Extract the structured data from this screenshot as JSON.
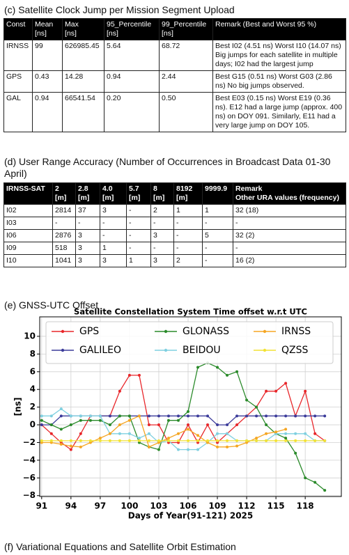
{
  "section_c": {
    "title": "(c) Satellite Clock Jump per Mission Segment Upload",
    "table": {
      "header": [
        [
          "Const"
        ],
        [
          "Mean",
          "[ns]"
        ],
        [
          "Max",
          "[ns]"
        ],
        [
          "95_Percentile",
          "[ns]"
        ],
        [
          "99_Percentile",
          "[ns]"
        ],
        [
          "Remark (Best and Worst 95 %)"
        ]
      ],
      "rows": [
        [
          "IRNSS",
          "99",
          "626985.45",
          "5.64",
          "68.72",
          "Best I02 (4.51 ns) Worst I10 (14.07 ns) Big jumps for each satellite in multiple days; I02 had the largest jump"
        ],
        [
          "GPS",
          "0.43",
          "14.28",
          "0.94",
          "2.44",
          "Best G15 (0.51 ns) Worst G03 (2.86 ns) No big jumps observed."
        ],
        [
          "GAL",
          "0.94",
          "66541.54",
          "0.20",
          "0.50",
          "Best E03 (0.15 ns) Worst E19 (0.36 ns). E12 had a large jump (approx. 400 ns) on DOY 091. Similarly, E11 had a very large jump on DOY 105."
        ]
      ]
    }
  },
  "section_d": {
    "title": "(d) User Range Accuracy (Number of Occurrences in Broadcast Data 01-30 April)",
    "table": {
      "header": [
        [
          "IRNSS-SAT"
        ],
        [
          "2",
          "[m]"
        ],
        [
          "2.8",
          "[m]"
        ],
        [
          "4.0",
          "[m]"
        ],
        [
          "5.7",
          "[m]"
        ],
        [
          "8",
          "[m]"
        ],
        [
          "8192",
          "[m]"
        ],
        [
          "9999.9"
        ],
        [
          "Remark",
          "Other URA values (frequency)"
        ]
      ],
      "rows": [
        [
          "I02",
          "2814",
          "37",
          "3",
          "-",
          "2",
          "1",
          "1",
          "32 (18)"
        ],
        [
          "I03",
          "-",
          "-",
          "-",
          "-",
          "-",
          "-",
          "-",
          "-"
        ],
        [
          "I06",
          "2876",
          "3",
          "-",
          "-",
          "3",
          "-",
          "5",
          "32 (2)"
        ],
        [
          "I09",
          "518",
          "3",
          "1",
          "-",
          "-",
          "-",
          "-",
          "-"
        ],
        [
          "I10",
          "1041",
          "3",
          "3",
          "1",
          "3",
          "2",
          "-",
          "16 (2)"
        ]
      ]
    }
  },
  "section_e": {
    "title": "(e) GNSS-UTC Offset",
    "chart_data": {
      "type": "line",
      "title": "Satellite Constellation System Time offset w.r.t UTC",
      "x_label": "Days of Year(91-121) 2025",
      "y_label": "[ns]",
      "x": [
        91,
        92,
        93,
        94,
        95,
        96,
        97,
        98,
        99,
        100,
        101,
        102,
        103,
        104,
        105,
        106,
        107,
        108,
        109,
        110,
        111,
        112,
        113,
        114,
        115,
        116,
        117,
        118,
        119,
        120
      ],
      "series": [
        {
          "name": "GPS",
          "color": "#e8262a",
          "values": [
            0,
            -1,
            -2,
            -2.8,
            -1,
            1,
            1,
            1,
            3.8,
            5.6,
            5.6,
            0,
            0,
            -2,
            -2,
            0,
            -2,
            0,
            -2,
            -1,
            0,
            1,
            2,
            3.8,
            3.8,
            4.7,
            1,
            3.8,
            -1,
            -1.8
          ]
        },
        {
          "name": "GALILEO",
          "color": "#3b3b9a",
          "values": [
            0,
            0,
            1,
            1,
            1,
            1,
            1,
            1,
            1,
            1,
            1,
            1,
            1,
            1,
            1,
            1,
            1,
            1,
            0,
            0,
            1,
            1,
            1,
            1,
            1,
            1,
            1,
            1,
            1,
            1
          ]
        },
        {
          "name": "GLONASS",
          "color": "#2a8a2a",
          "values": [
            0.5,
            0,
            -0.5,
            0,
            0.5,
            0.5,
            0.5,
            0,
            1,
            1,
            -2,
            -2.5,
            -2.8,
            0.5,
            0.5,
            1.5,
            6.5,
            7,
            6.5,
            5.6,
            6,
            2.8,
            2,
            0,
            -1,
            -1.5,
            -3.2,
            -6,
            -6.5,
            -7.4
          ]
        },
        {
          "name": "BEIDOU",
          "color": "#7fd0e0",
          "values": [
            1,
            1,
            1.8,
            1,
            1,
            1,
            1,
            -1,
            -1,
            -1,
            -1.5,
            -1,
            -2,
            -1.8,
            -2.8,
            -2.8,
            -2.8,
            -2,
            -1,
            -1,
            -1.8,
            -1.8,
            -1.8,
            -1.8,
            -1,
            -1,
            -1,
            -1,
            -1.8,
            -1.8
          ]
        },
        {
          "name": "IRNSS",
          "color": "#f5a623",
          "values": [
            -2,
            -2,
            -2.2,
            -2.4,
            -2.5,
            -2,
            -1.5,
            -1,
            0,
            0.5,
            1,
            -2.5,
            -2,
            -1.5,
            -1,
            -0.5,
            -1.2,
            -2,
            -2.5,
            -2.5,
            -2.4,
            -2,
            -1.5,
            -1,
            -0.8,
            -0.5,
            null,
            null,
            null,
            null
          ]
        },
        {
          "name": "QZSS",
          "color": "#f2e233",
          "values": [
            -1.8,
            -1.8,
            -1.8,
            -1.8,
            -1.8,
            -1.8,
            -1.8,
            -1.8,
            -1.8,
            -1.8,
            -1.8,
            -1.8,
            -1.8,
            -1.8,
            -1.8,
            -1.8,
            -1.8,
            -1.8,
            -1.8,
            -1.8,
            -1.8,
            -1.8,
            -1.8,
            -1.8,
            -1.8,
            -1.8,
            -1.8,
            -1.8,
            -1.8,
            -1.8
          ]
        }
      ],
      "xlim": [
        90.8,
        121.7
      ],
      "ylim": [
        -8.1,
        12.2
      ],
      "xticks": [
        91,
        94,
        97,
        100,
        103,
        106,
        109,
        112,
        115,
        118
      ],
      "yticks": [
        {
          "value": -8,
          "label": "−8"
        },
        {
          "value": -6,
          "label": "−6"
        },
        {
          "value": -4,
          "label": "−4"
        },
        {
          "value": -2,
          "label": "−2"
        },
        0,
        2,
        4,
        6,
        8,
        10
      ],
      "grid": true,
      "legend": "top"
    }
  },
  "section_f": {
    "title": "(f) Variational Equations and Satellite Orbit Estimation"
  }
}
